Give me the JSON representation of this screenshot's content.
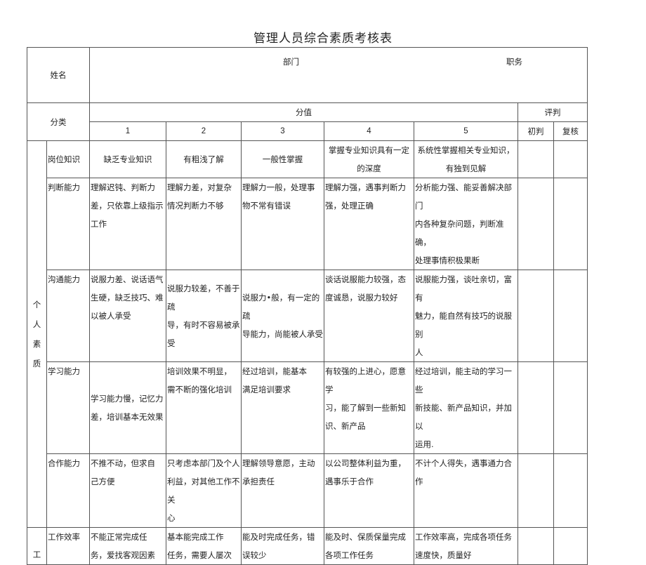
{
  "title": "管理人员综合素质考核表",
  "header": {
    "name_label": "姓名",
    "dept_label": "部门",
    "position_label": "职务",
    "category_label": "分类",
    "score_label": "分值",
    "judge_label": "评判",
    "scores": [
      "1",
      "2",
      "3",
      "4",
      "5"
    ],
    "initial_label": "初判",
    "review_label": "复核"
  },
  "groups": [
    {
      "category": "个\n人\n素\n质",
      "rows": [
        {
          "item": "岗位知识",
          "cells": [
            "缺乏专业知识",
            "有粗浅了解",
            "一般性掌握",
            "掌握专业知识具有一定\n的深度",
            "系统性掌握相关专业知识，\n有独到见解"
          ]
        },
        {
          "item": "判断能力",
          "cells": [
            "理解迟钝、判断力\n差，只依靠上级指示\n工作",
            "理解力差，对复杂\n情况判断力不够",
            "理解力一般，处理事\n物不常有错误",
            "理解力强，遇事判断力\n强，处理正确",
            "分析能力强、能妥善解决部门\n内各种复杂问题，判断准确，\n处理事情积极果断"
          ]
        },
        {
          "item": "沟通能力",
          "cells": [
            "说服力差、说话语气\n生硬，缺乏技巧、难\n以被人承受",
            "说服力较差，不善于疏\n导，有时不容易被承受",
            "说服力•般，有一定的疏\n导能力，尚能被人承受",
            "谈话说服能力较强，态\n度诚恳，说服力较好",
            "说服能力强，谈吐亲切，富有\n魅力，能自然有技巧的说服别\n人"
          ]
        },
        {
          "item": "学习能力",
          "cells": [
            "学习能力慢，记忆力\n差，培训基本无效果",
            "培训效果不明显，\n需不断的强化培训",
            "经过培训，能基本\n满足培训要求",
            "有较强的上进心，愿意学\n习，能了解到一些新知\n识、新产品",
            "经过培训，能主动的学习一些\n新技能、新产品知识，并加以\n运用."
          ]
        },
        {
          "item": "合作能力",
          "cells": [
            "不推不动，但求自\n己方便",
            "只考虑本部门及个人\n利益，对其他工作不关\n心",
            "理解领导意愿，主动\n承担责任",
            "以公司整体利益为重，\n遇事乐于合作",
            "不计个人得失，遇事通力合\n作"
          ]
        }
      ]
    },
    {
      "category": "工",
      "rows": [
        {
          "item": "工作效率",
          "cells": [
            "不能正常完成任\n务，爱找客观因素",
            "基本能完成工作\n任务，需要人屡次",
            "能及时完成任务，错\n误较少",
            "能及时、保质保量完成\n各项工作任务",
            "工作效率高，完成各项任务\n速度快，质量好"
          ]
        }
      ]
    }
  ]
}
